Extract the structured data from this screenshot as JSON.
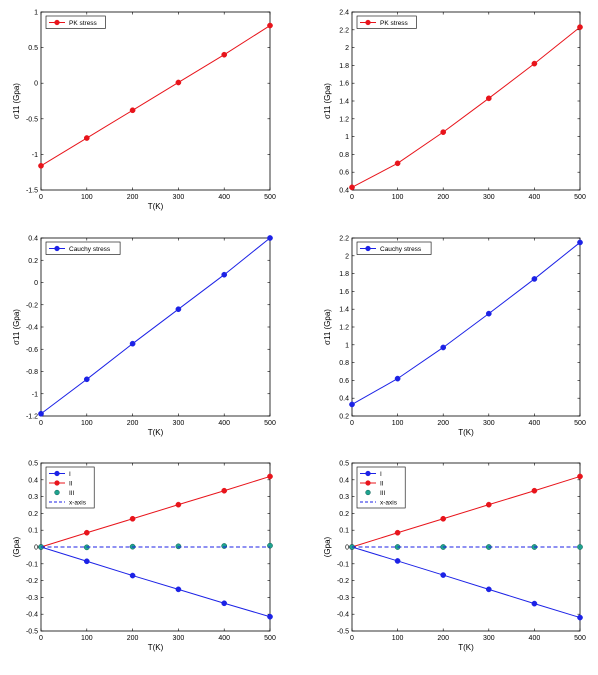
{
  "colors": {
    "red": "#e8141b",
    "blue": "#1c22e6",
    "teal": "#1fa38f",
    "axis": "#000000"
  },
  "chart_data": [
    {
      "type": "line",
      "x": [
        0,
        100,
        200,
        300,
        400,
        500
      ],
      "series": [
        {
          "name": "PK stress",
          "values": [
            -1.16,
            -0.77,
            -0.38,
            0.01,
            0.4,
            0.81
          ],
          "color": "red",
          "style": "solid-marker"
        }
      ],
      "xlabel": "T(K)",
      "ylabel": "σ11 (Gpa)",
      "xlim": [
        0,
        500
      ],
      "ylim": [
        -1.5,
        1
      ],
      "xticks": [
        0,
        100,
        200,
        300,
        400,
        500
      ],
      "xtick_labels": [
        "0",
        "100",
        "200",
        "300",
        "400",
        "500"
      ],
      "yticks": [
        -1.5,
        -1,
        -0.5,
        0,
        0.5,
        1
      ],
      "ytick_labels": [
        "-1.5",
        "-1",
        "-0.5",
        "0",
        "0.5",
        "1"
      ],
      "legend": "top-left"
    },
    {
      "type": "line",
      "x": [
        0,
        100,
        200,
        300,
        400,
        500
      ],
      "series": [
        {
          "name": "PK stress",
          "values": [
            0.43,
            0.7,
            1.05,
            1.43,
            1.82,
            2.23
          ],
          "color": "red",
          "style": "solid-marker"
        }
      ],
      "xlabel": "",
      "ylabel": "σ11 (Gpa)",
      "xlim": [
        0,
        500
      ],
      "ylim": [
        0.4,
        2.4
      ],
      "xticks": [
        0,
        100,
        200,
        300,
        400,
        500
      ],
      "xtick_labels": [
        "0",
        "100",
        "200",
        "300",
        "400",
        "500"
      ],
      "yticks": [
        0.4,
        0.6,
        0.8,
        1,
        1.2,
        1.4,
        1.6,
        1.8,
        2,
        2.2,
        2.4
      ],
      "ytick_labels": [
        "0.4",
        "0.6",
        "0.8",
        "1",
        "1.2",
        "1.4",
        "1.6",
        "1.8",
        "2",
        "2.2",
        "2.4"
      ],
      "legend": "top-left"
    },
    {
      "type": "line",
      "x": [
        0,
        100,
        200,
        300,
        400,
        500
      ],
      "series": [
        {
          "name": "Cauchy stress",
          "values": [
            -1.18,
            -0.87,
            -0.55,
            -0.24,
            0.07,
            0.4
          ],
          "color": "blue",
          "style": "solid-marker"
        }
      ],
      "xlabel": "T(K)",
      "ylabel": "σ11 (Gpa)",
      "xlim": [
        0,
        500
      ],
      "ylim": [
        -1.2,
        0.4
      ],
      "xticks": [
        0,
        100,
        200,
        300,
        400,
        500
      ],
      "xtick_labels": [
        "0",
        "100",
        "200",
        "300",
        "400",
        "500"
      ],
      "yticks": [
        -1.2,
        -1,
        -0.8,
        -0.6,
        -0.4,
        -0.2,
        0,
        0.2,
        0.4
      ],
      "ytick_labels": [
        "-1.2",
        "-1",
        "-0.8",
        "-0.6",
        "-0.4",
        "-0.2",
        "0",
        "0.2",
        "0.4"
      ],
      "legend": "top-left"
    },
    {
      "type": "line",
      "x": [
        0,
        100,
        200,
        300,
        400,
        500
      ],
      "series": [
        {
          "name": "Cauchy stress",
          "values": [
            0.33,
            0.62,
            0.97,
            1.35,
            1.74,
            2.15
          ],
          "color": "blue",
          "style": "solid-marker"
        }
      ],
      "xlabel": "T(K)",
      "ylabel": "σ11 (Gpa)",
      "xlim": [
        0,
        500
      ],
      "ylim": [
        0.2,
        2.2
      ],
      "xticks": [
        0,
        100,
        200,
        300,
        400,
        500
      ],
      "xtick_labels": [
        "0",
        "100",
        "200",
        "300",
        "400",
        "500"
      ],
      "yticks": [
        0.2,
        0.4,
        0.6,
        0.8,
        1,
        1.2,
        1.4,
        1.6,
        1.8,
        2,
        2.2
      ],
      "ytick_labels": [
        "0.2",
        "0.4",
        "0.6",
        "0.8",
        "1",
        "1.2",
        "1.4",
        "1.6",
        "1.8",
        "2",
        "2.2"
      ],
      "legend": "top-left"
    },
    {
      "type": "line",
      "x": [
        0,
        100,
        200,
        300,
        400,
        500
      ],
      "series": [
        {
          "name": "I",
          "values": [
            0,
            -0.085,
            -0.17,
            -0.252,
            -0.335,
            -0.415
          ],
          "color": "blue",
          "style": "solid-marker"
        },
        {
          "name": "II",
          "values": [
            0,
            0.085,
            0.168,
            0.252,
            0.335,
            0.42
          ],
          "color": "red",
          "style": "solid-marker"
        },
        {
          "name": "III",
          "values": [
            0,
            -0.002,
            0.002,
            0.004,
            0.006,
            0.008
          ],
          "color": "teal",
          "style": "marker-only"
        },
        {
          "name": "x-axis",
          "values": [
            0,
            0,
            0,
            0,
            0,
            0
          ],
          "color": "blue",
          "style": "dashed"
        }
      ],
      "xlabel": "T(K)",
      "ylabel": "(Gpa)",
      "xlim": [
        0,
        500
      ],
      "ylim": [
        -0.5,
        0.5
      ],
      "xticks": [
        0,
        100,
        200,
        300,
        400,
        500
      ],
      "xtick_labels": [
        "0",
        "100",
        "200",
        "300",
        "400",
        "500"
      ],
      "yticks": [
        -0.5,
        -0.4,
        -0.3,
        -0.2,
        -0.1,
        0,
        0.1,
        0.2,
        0.3,
        0.4,
        0.5
      ],
      "ytick_labels": [
        "-0.5",
        "-0.4",
        "-0.3",
        "-0.2",
        "-0.1",
        "0",
        "0.1",
        "0.2",
        "0.3",
        "0.4",
        "0.5"
      ],
      "legend": "top-left"
    },
    {
      "type": "line",
      "x": [
        0,
        100,
        200,
        300,
        400,
        500
      ],
      "series": [
        {
          "name": "I",
          "values": [
            0,
            -0.083,
            -0.167,
            -0.252,
            -0.337,
            -0.42
          ],
          "color": "blue",
          "style": "solid-marker"
        },
        {
          "name": "II",
          "values": [
            0,
            0.085,
            0.168,
            0.252,
            0.335,
            0.42
          ],
          "color": "red",
          "style": "solid-marker"
        },
        {
          "name": "III",
          "values": [
            0,
            0,
            0,
            0,
            0,
            0
          ],
          "color": "teal",
          "style": "marker-only"
        },
        {
          "name": "x-axis",
          "values": [
            0,
            0,
            0,
            0,
            0,
            0
          ],
          "color": "blue",
          "style": "dashed"
        }
      ],
      "xlabel": "T(K)",
      "ylabel": "(Gpa)",
      "xlim": [
        0,
        500
      ],
      "ylim": [
        -0.5,
        0.5
      ],
      "xticks": [
        0,
        100,
        200,
        300,
        400,
        500
      ],
      "xtick_labels": [
        "0",
        "100",
        "200",
        "300",
        "400",
        "500"
      ],
      "yticks": [
        -0.5,
        -0.4,
        -0.3,
        -0.2,
        -0.1,
        0,
        0.1,
        0.2,
        0.3,
        0.4,
        0.5
      ],
      "ytick_labels": [
        "-0.5",
        "-0.4",
        "-0.3",
        "-0.2",
        "-0.1",
        "0",
        "0.1",
        "0.2",
        "0.3",
        "0.4",
        "0.5"
      ],
      "legend": "top-left"
    }
  ]
}
